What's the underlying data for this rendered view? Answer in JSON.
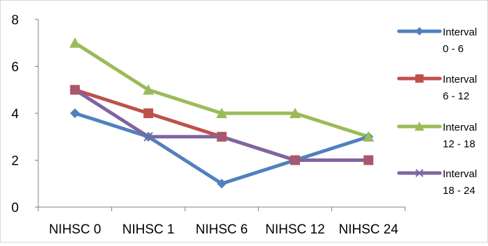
{
  "chart_data": {
    "type": "line",
    "title": "",
    "xlabel": "",
    "ylabel": "",
    "categories": [
      "NIHSC 0",
      "NIHSC 1",
      "NIHSC 6",
      "NIHSC 12",
      "NIHSC 24"
    ],
    "ylim": [
      0,
      8
    ],
    "yticks": [
      "0",
      "2",
      "4",
      "6",
      "8"
    ],
    "grid": false,
    "legend_position": "right",
    "series": [
      {
        "name": "Interval 0 - 6",
        "name_lines": [
          "Interval",
          "0 - 6"
        ],
        "values": [
          4,
          3,
          1,
          2,
          3
        ],
        "color": "#4F81BD",
        "marker": "diamond"
      },
      {
        "name": "Interval 6 - 12",
        "name_lines": [
          "Interval",
          "6 - 12"
        ],
        "values": [
          5,
          4,
          3,
          2,
          2
        ],
        "color": "#C0504D",
        "marker": "square"
      },
      {
        "name": "Interval 12 - 18",
        "name_lines": [
          "Interval",
          "12 - 18"
        ],
        "values": [
          7,
          5,
          4,
          4,
          3
        ],
        "color": "#9BBB59",
        "marker": "triangle"
      },
      {
        "name": "Interval 18 - 24",
        "name_lines": [
          "Interval",
          "18 - 24"
        ],
        "values": [
          5,
          3,
          3,
          2,
          2
        ],
        "color": "#8064A2",
        "marker": "x"
      }
    ]
  }
}
